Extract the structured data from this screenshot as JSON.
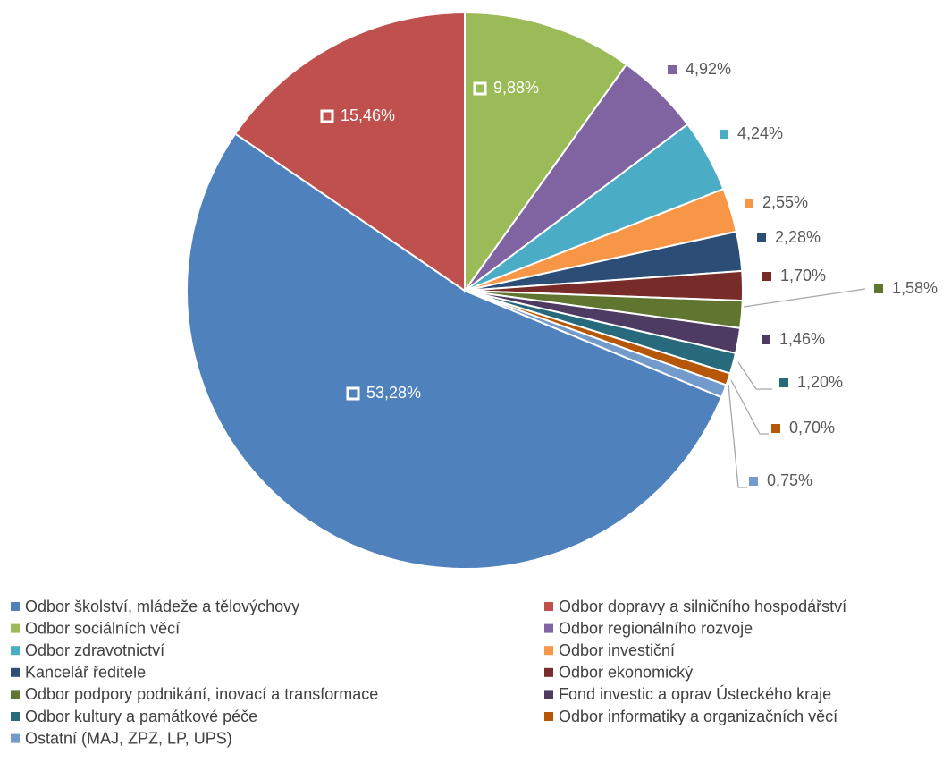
{
  "chart_data": {
    "type": "pie",
    "categories": [
      "Odbor školství, mládeže a tělovýchovy",
      "Odbor dopravy a silničního hospodářství",
      "Odbor sociálních věcí",
      "Odbor regionálního rozvoje",
      "Odbor zdravotnictví",
      "Odbor investiční",
      "Kancelář ředitele",
      "Odbor ekonomický",
      "Odbor podpory podnikání, inovací a transformace",
      "Fond investic a oprav Ústeckého kraje",
      "Odbor kultury a památkové péče",
      "Odbor informatiky a organizačních věcí",
      "Ostatní (MAJ, ZPZ, LP, UPS)"
    ],
    "values": [
      53.28,
      15.46,
      9.88,
      4.92,
      4.24,
      2.55,
      2.28,
      1.7,
      1.58,
      1.46,
      1.2,
      0.7,
      0.75
    ],
    "value_labels": [
      "53,28%",
      "15,46%",
      "9,88%",
      "4,92%",
      "4,24%",
      "2,55%",
      "2,28%",
      "1,70%",
      "1,58%",
      "1,46%",
      "1,20%",
      "0,70%",
      "0,75%"
    ],
    "colors": [
      "#4f81bd",
      "#c0504d",
      "#9bbb59",
      "#8064a2",
      "#4bacc6",
      "#f79646",
      "#2c4d75",
      "#772c2a",
      "#5f7530",
      "#4d3b62",
      "#276a7c",
      "#b65708",
      "#729aca"
    ],
    "legend": "bottom"
  }
}
